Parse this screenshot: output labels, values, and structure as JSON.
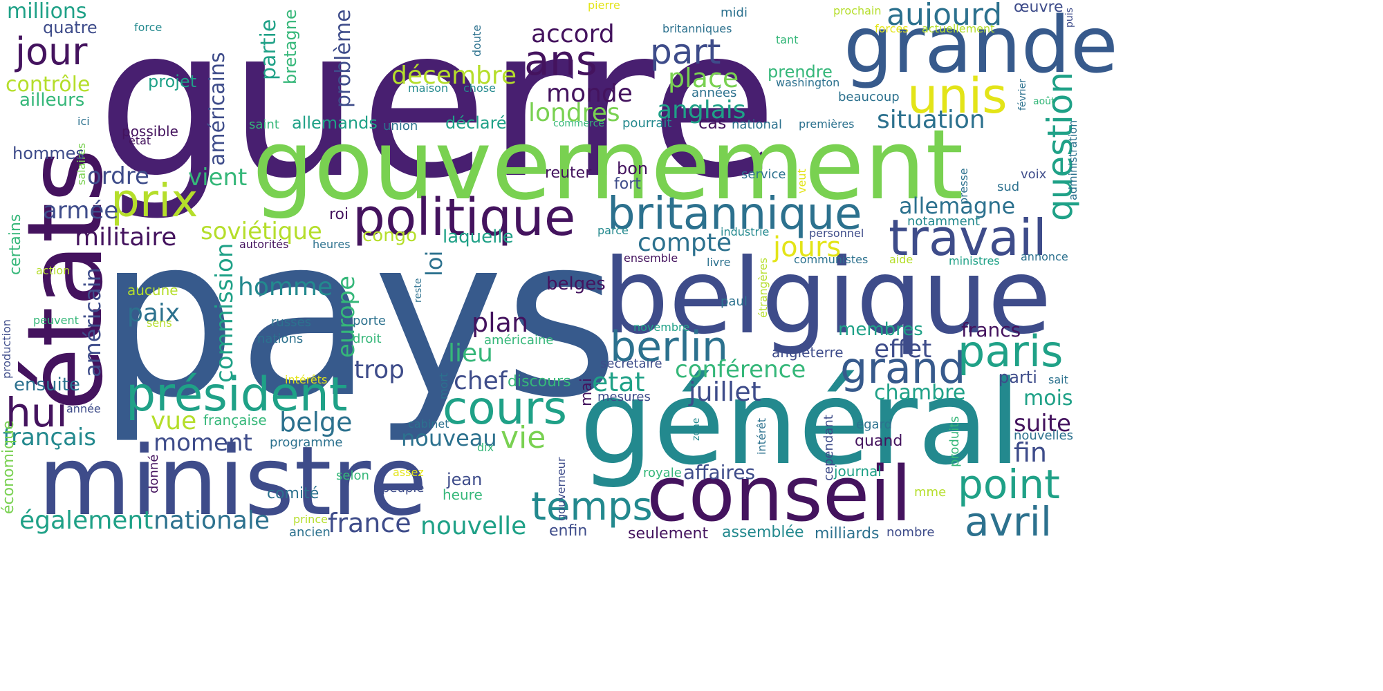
{
  "palette": {
    "d1": "#44135e",
    "d2": "#481f70",
    "p1": "#3e4c8a",
    "b1": "#375a8c",
    "b2": "#2c718e",
    "t1": "#23898e",
    "t2": "#1fa187",
    "g1": "#35b779",
    "g2": "#79d151",
    "y1": "#b5de2b",
    "y2": "#e3e418"
  },
  "words": [
    "guerre",
    "pays",
    "gouvernement",
    "états",
    "belgique",
    "général",
    "ministre",
    "conseil",
    "grande",
    "unis",
    "politique",
    "britannique",
    "président",
    "travail",
    "prix",
    "cours",
    "berlin",
    "grand",
    "paris",
    "temps",
    "point",
    "avril",
    "ans",
    "jour",
    "aujourd",
    "hui",
    "part",
    "question",
    "place",
    "accord",
    "monde",
    "décembre",
    "londres",
    "anglais",
    "situation",
    "allemagne",
    "américains",
    "problème",
    "partie",
    "bretagne",
    "millions",
    "quatre",
    "contrôle",
    "ailleurs",
    "projet",
    "force",
    "doute",
    "midi",
    "britanniques",
    "prochain",
    "tant",
    "forces",
    "actuellement",
    "œuvre",
    "pierre",
    "maison",
    "chose",
    "années",
    "washington",
    "beaucoup",
    "février",
    "puis",
    "août",
    "administration",
    "prendre",
    "déclaré",
    "allemands",
    "union",
    "saint",
    "commerce",
    "pourrait",
    "cas",
    "national",
    "premières",
    "possible",
    "état",
    "ici",
    "salaires",
    "hommes",
    "ordre",
    "vient",
    "armée",
    "militaire",
    "soviétique",
    "congo",
    "laquelle",
    "loi",
    "jours",
    "compte",
    "reuter",
    "bon",
    "fort",
    "service",
    "veut",
    "presse",
    "voix",
    "sud",
    "notamment",
    "industrie",
    "personnel",
    "parce",
    "roi",
    "autorités",
    "heures",
    "ensemble",
    "livre",
    "communistes",
    "aide",
    "ministres",
    "annonce",
    "certains",
    "action",
    "américain",
    "aucune",
    "homme",
    "commission",
    "europe",
    "belges",
    "paul",
    "étrangères",
    "paix",
    "sens",
    "peuvent",
    "production",
    "russes",
    "nations",
    "porte",
    "droit",
    "reste",
    "plan",
    "américaine",
    "novembre",
    "lieu",
    "effet",
    "membres",
    "angleterre",
    "francs",
    "secrétaire",
    "conférence",
    "trop",
    "ensuite",
    "intérêts",
    "chef",
    "discours",
    "etat",
    "juillet",
    "mort",
    "mai",
    "mesures",
    "chambre",
    "parti",
    "sait",
    "mois",
    "année",
    "vue",
    "française",
    "belge",
    "moment",
    "nouveau",
    "vie",
    "suite",
    "nouvelles",
    "français",
    "cabinet",
    "programme",
    "quand",
    "égard",
    "intérêt",
    "zone",
    "cependant",
    "produits",
    "fin",
    "économique",
    "dix",
    "jean",
    "selon",
    "heure",
    "peuple",
    "assez",
    "donné",
    "comité",
    "gouverneur",
    "royale",
    "affaires",
    "journal",
    "mme",
    "également",
    "nationale",
    "france",
    "nouvelle",
    "prince",
    "ancien",
    "enfin",
    "seulement",
    "assemblée",
    "milliards",
    "nombre"
  ]
}
